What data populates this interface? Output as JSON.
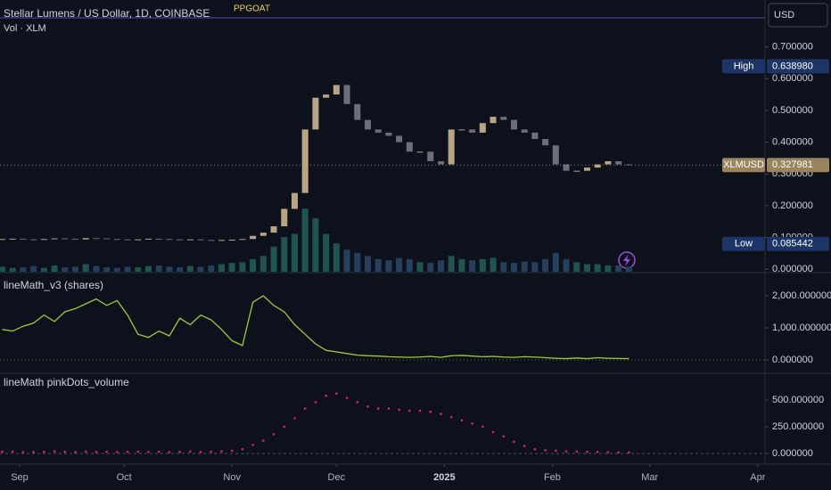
{
  "chart_data": [
    {
      "type": "candlestick",
      "title": "Stellar Lumens / US Dollar, 1D, COINBASE",
      "indicator_label": "PPGOAT",
      "currency": "USD",
      "x": [
        0,
        3,
        6,
        9,
        12,
        15,
        18,
        21,
        24,
        27,
        30,
        33,
        36,
        39,
        42,
        45,
        48,
        51,
        54,
        57,
        60,
        63,
        66,
        69,
        72,
        75,
        78,
        81,
        84,
        87,
        90,
        93,
        96,
        99,
        102,
        105,
        108,
        111,
        114,
        117,
        120,
        123,
        126,
        129,
        132,
        135,
        138,
        141,
        144,
        147,
        150,
        153,
        156,
        159,
        162,
        165,
        168,
        171,
        174,
        177,
        180
      ],
      "open": [
        0.094,
        0.095,
        0.096,
        0.094,
        0.093,
        0.095,
        0.097,
        0.096,
        0.094,
        0.098,
        0.097,
        0.095,
        0.094,
        0.093,
        0.094,
        0.096,
        0.095,
        0.094,
        0.093,
        0.094,
        0.092,
        0.091,
        0.092,
        0.093,
        0.095,
        0.105,
        0.115,
        0.135,
        0.19,
        0.24,
        0.44,
        0.54,
        0.55,
        0.58,
        0.52,
        0.47,
        0.44,
        0.43,
        0.42,
        0.4,
        0.37,
        0.37,
        0.34,
        0.33,
        0.44,
        0.44,
        0.43,
        0.46,
        0.48,
        0.47,
        0.44,
        0.43,
        0.41,
        0.39,
        0.33,
        0.31,
        0.31,
        0.32,
        0.33,
        0.34,
        0.33
      ],
      "high": {
        "value": 0.63898,
        "label": "0.638980"
      },
      "low": {
        "value": 0.085442,
        "label": "0.085442"
      },
      "close": [
        0.095,
        0.096,
        0.094,
        0.093,
        0.095,
        0.097,
        0.096,
        0.094,
        0.098,
        0.097,
        0.095,
        0.094,
        0.093,
        0.094,
        0.096,
        0.095,
        0.094,
        0.093,
        0.094,
        0.092,
        0.091,
        0.092,
        0.093,
        0.095,
        0.105,
        0.115,
        0.135,
        0.19,
        0.24,
        0.44,
        0.54,
        0.55,
        0.58,
        0.52,
        0.47,
        0.44,
        0.43,
        0.42,
        0.4,
        0.37,
        0.37,
        0.34,
        0.33,
        0.44,
        0.44,
        0.43,
        0.46,
        0.48,
        0.47,
        0.44,
        0.43,
        0.41,
        0.39,
        0.33,
        0.31,
        0.31,
        0.32,
        0.33,
        0.34,
        0.33,
        0.328
      ],
      "up_color": "#b9a483",
      "down_color": "#6b6f7a",
      "volume": {
        "name": "Vol · XLM",
        "axis": "y2",
        "up_color": "#1f5550",
        "down_color": "#253f5c",
        "values": [
          8,
          6,
          7,
          9,
          6,
          10,
          7,
          8,
          12,
          9,
          7,
          6,
          8,
          7,
          9,
          10,
          8,
          7,
          9,
          8,
          10,
          12,
          14,
          15,
          20,
          25,
          40,
          55,
          60,
          100,
          85,
          60,
          45,
          35,
          30,
          25,
          20,
          18,
          22,
          20,
          15,
          14,
          18,
          25,
          20,
          18,
          20,
          22,
          15,
          14,
          16,
          15,
          20,
          30,
          20,
          15,
          12,
          12,
          10,
          10,
          8
        ]
      },
      "y2lim": [
        0,
        400
      ],
      "xlim": [
        -0.64,
        219.1
      ],
      "ylim": [
        -0.008,
        0.786
      ],
      "yticks": [
        {
          "value": 0,
          "label": "0.000000"
        },
        {
          "value": 0.1,
          "label": "0.100000"
        },
        {
          "value": 0.2,
          "label": "0.200000"
        },
        {
          "value": 0.3,
          "label": "0.300000"
        },
        {
          "value": 0.4,
          "label": "0.400000"
        },
        {
          "value": 0.5,
          "label": "0.500000"
        },
        {
          "value": 0.6,
          "label": "0.600000"
        },
        {
          "value": 0.7,
          "label": "0.700000"
        }
      ],
      "high_name": "High",
      "low_name": "Low",
      "last_name": "XLMUSD",
      "last": {
        "value": 0.327981,
        "label": "0.327981"
      }
    },
    {
      "type": "line",
      "title": "lineMath_v3 (shares)",
      "color": "#9ccc35",
      "x": [
        0,
        3,
        6,
        9,
        12,
        15,
        18,
        21,
        24,
        27,
        30,
        33,
        36,
        39,
        42,
        45,
        48,
        51,
        54,
        57,
        60,
        63,
        66,
        69,
        72,
        75,
        78,
        81,
        84,
        87,
        90,
        93,
        96,
        99,
        102,
        105,
        108,
        111,
        114,
        117,
        120,
        123,
        126,
        129,
        132,
        135,
        138,
        141,
        144,
        147,
        150,
        153,
        156,
        159,
        162,
        165,
        168,
        171,
        174,
        177,
        180
      ],
      "values": [
        950,
        900,
        1050,
        1150,
        1400,
        1200,
        1500,
        1600,
        1750,
        1900,
        1700,
        1850,
        1400,
        800,
        700,
        900,
        750,
        1300,
        1100,
        1400,
        1250,
        950,
        600,
        450,
        1800,
        2000,
        1700,
        1500,
        1100,
        800,
        500,
        300,
        250,
        200,
        150,
        130,
        120,
        100,
        90,
        80,
        90,
        110,
        80,
        130,
        140,
        120,
        100,
        110,
        90,
        80,
        100,
        90,
        70,
        50,
        40,
        60,
        40,
        70,
        50,
        45,
        40
      ],
      "xlim": [
        -0.64,
        219.1
      ],
      "ylim": [
        -389,
        2667
      ],
      "yticks": [
        {
          "value": 0,
          "label": "0.000000"
        },
        {
          "value": 1000,
          "label": "1,000.000000"
        },
        {
          "value": 2000,
          "label": "2,000.000000"
        }
      ]
    },
    {
      "type": "scatter",
      "title": "lineMath pinkDots_volume",
      "color": "#e91e63",
      "x": [
        0,
        3,
        6,
        9,
        12,
        15,
        18,
        21,
        24,
        27,
        30,
        33,
        36,
        39,
        42,
        45,
        48,
        51,
        54,
        57,
        60,
        63,
        66,
        69,
        72,
        75,
        78,
        81,
        84,
        87,
        90,
        93,
        96,
        99,
        102,
        105,
        108,
        111,
        114,
        117,
        120,
        123,
        126,
        129,
        132,
        135,
        138,
        141,
        144,
        147,
        150,
        153,
        156,
        159,
        162,
        165,
        168,
        171,
        174,
        177,
        180
      ],
      "values": [
        15,
        18,
        12,
        14,
        16,
        20,
        15,
        12,
        18,
        14,
        16,
        13,
        15,
        17,
        14,
        16,
        12,
        15,
        18,
        14,
        16,
        20,
        25,
        40,
        80,
        120,
        180,
        250,
        330,
        420,
        480,
        540,
        560,
        520,
        480,
        440,
        420,
        420,
        410,
        400,
        400,
        390,
        370,
        340,
        310,
        280,
        250,
        200,
        160,
        110,
        70,
        40,
        30,
        25,
        20,
        18,
        15,
        14,
        12,
        10,
        10
      ],
      "xlim": [
        -0.64,
        219.1
      ],
      "ylim": [
        -92,
        742
      ],
      "yticks": [
        {
          "value": 0,
          "label": "0.000000"
        },
        {
          "value": 250,
          "label": "250.000000"
        },
        {
          "value": 500,
          "label": "500.000000"
        }
      ],
      "xticks": [
        {
          "value": 5,
          "label": "Sep"
        },
        {
          "value": 35,
          "label": "Oct"
        },
        {
          "value": 66,
          "label": "Nov"
        },
        {
          "value": 96,
          "label": "Dec"
        },
        {
          "value": 127,
          "label": "2025"
        },
        {
          "value": 158,
          "label": "Feb"
        },
        {
          "value": 186,
          "label": "Mar"
        },
        {
          "value": 217,
          "label": "Apr"
        }
      ]
    }
  ]
}
